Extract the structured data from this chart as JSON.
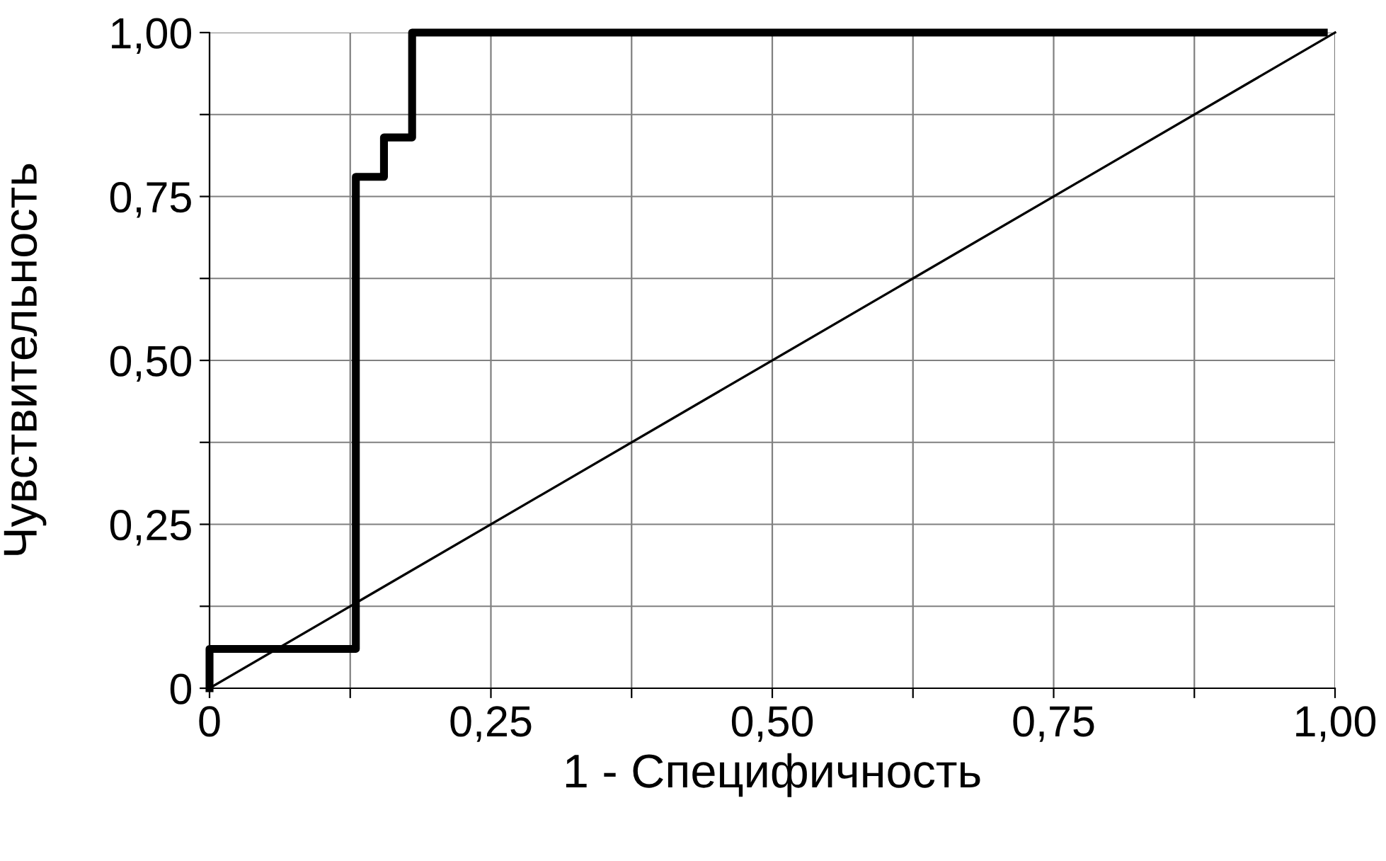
{
  "chart_data": {
    "type": "step",
    "xlabel": "1 - Специфичность",
    "ylabel": "Чувствительность",
    "series": [
      {
        "color": "#000000",
        "x": [
          0,
          0,
          0.13,
          0.155,
          0.18,
          0.99
        ],
        "values": [
          0,
          0.06,
          0.78,
          0.84,
          1.0,
          1.0
        ]
      },
      {
        "type": "line",
        "color": "#000000",
        "x": [
          0,
          1
        ],
        "values": [
          0,
          1
        ]
      }
    ],
    "xlim": [
      0,
      1
    ],
    "ylim": [
      0,
      1
    ],
    "xticks": [
      {
        "value": 0,
        "label": "0"
      },
      {
        "value": 0.125,
        "label": null
      },
      {
        "value": 0.25,
        "label": "0,25"
      },
      {
        "value": 0.375,
        "label": null
      },
      {
        "value": 0.5,
        "label": "0,50"
      },
      {
        "value": 0.625,
        "label": null
      },
      {
        "value": 0.75,
        "label": "0,75"
      },
      {
        "value": 0.875,
        "label": null
      },
      {
        "value": 1,
        "label": "1,00"
      }
    ],
    "yticks": [
      {
        "value": 0,
        "label": "0"
      },
      {
        "value": 0.125,
        "label": null
      },
      {
        "value": 0.25,
        "label": "0,25"
      },
      {
        "value": 0.375,
        "label": null
      },
      {
        "value": 0.5,
        "label": "0,50"
      },
      {
        "value": 0.625,
        "label": null
      },
      {
        "value": 0.75,
        "label": "0,75"
      },
      {
        "value": 0.875,
        "label": null
      },
      {
        "value": 1,
        "label": "1,00"
      }
    ],
    "grid": true
  }
}
